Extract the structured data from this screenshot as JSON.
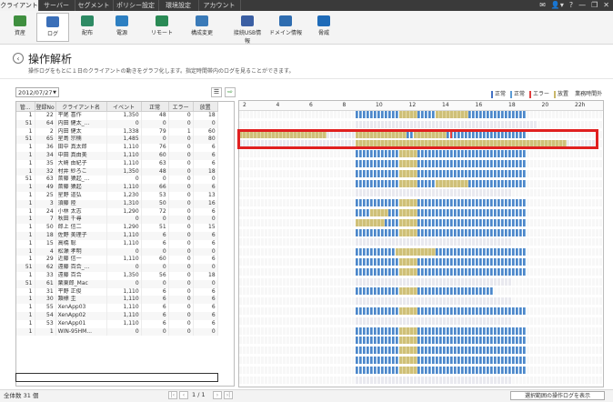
{
  "tabs": [
    "クライアント",
    "サーバー",
    "セグメント",
    "ポリシー設定",
    "環境設定",
    "アカウント"
  ],
  "top_icons": [
    "mail-icon",
    "user-icon",
    "help-icon",
    "minimize-icon",
    "restore-icon",
    "close-icon"
  ],
  "top_icon_glyphs": [
    "✉",
    "👤▾",
    "?",
    "—",
    "❐",
    "✕"
  ],
  "ribbon": [
    {
      "label": "資産",
      "icon": "asset-icon",
      "color": "#3f8f3f"
    },
    {
      "label": "ログ",
      "icon": "log-icon",
      "color": "#3a6fb8"
    },
    {
      "label": "配布",
      "icon": "distribution-icon",
      "color": "#2e8a64"
    },
    {
      "label": "電源",
      "icon": "power-icon",
      "color": "#2d7fc1"
    },
    {
      "label": "リモート",
      "icon": "remote-icon",
      "color": "#2a8a55"
    },
    {
      "label": "構成変更",
      "icon": "config-change-icon",
      "color": "#3a7ab8"
    },
    {
      "label": "接続USB情報",
      "icon": "usb-icon",
      "color": "#3b5fa3"
    },
    {
      "label": "ドメイン情報",
      "icon": "domain-icon",
      "color": "#2f6db0"
    },
    {
      "label": "脅威",
      "icon": "threat-shield-icon",
      "color": "#1f6bb8"
    }
  ],
  "page": {
    "title": "操作解析",
    "subtitle": "操作ログをもとに１日のクライアントの動きをグラフ化します。指定時間帯内のログを見ることができます。",
    "date": "2012/07/27"
  },
  "columns": [
    "管...",
    "登録No",
    "クライアント名",
    "イベント",
    "正常",
    "エラー",
    "放置"
  ],
  "rows": [
    [
      "1",
      "22",
      "平尾 喜作",
      "1,350",
      "48",
      "0",
      "18"
    ],
    [
      "51",
      "64",
      "内田 健太_...",
      "0",
      "0",
      "0",
      "0"
    ],
    [
      "1",
      "2",
      "内田 健太",
      "1,338",
      "79",
      "1",
      "60"
    ],
    [
      "51",
      "65",
      "星島 宗楠",
      "1,485",
      "0",
      "0",
      "80"
    ],
    [
      "1",
      "36",
      "田中 真太郎",
      "1,110",
      "76",
      "0",
      "6"
    ],
    [
      "1",
      "34",
      "中田 真由美",
      "1,110",
      "60",
      "0",
      "6"
    ],
    [
      "1",
      "35",
      "大崎 由紀子",
      "1,110",
      "63",
      "0",
      "6"
    ],
    [
      "1",
      "32",
      "村井 紗ろこ",
      "1,350",
      "48",
      "0",
      "18"
    ],
    [
      "51",
      "63",
      "斎藤 猿起_...",
      "0",
      "0",
      "0",
      "0"
    ],
    [
      "1",
      "49",
      "斎藤 猿起",
      "1,110",
      "66",
      "0",
      "6"
    ],
    [
      "1",
      "25",
      "星野 道弘",
      "1,230",
      "53",
      "0",
      "13"
    ],
    [
      "1",
      "3",
      "須藤 陸",
      "1,310",
      "50",
      "0",
      "16"
    ],
    [
      "1",
      "24",
      "小林 太志",
      "1,290",
      "72",
      "0",
      "6"
    ],
    [
      "1",
      "7",
      "秋田 千尋",
      "0",
      "0",
      "0",
      "0"
    ],
    [
      "1",
      "50",
      "郎上 信二",
      "1,290",
      "51",
      "0",
      "15"
    ],
    [
      "1",
      "18",
      "佐野 美理子",
      "1,110",
      "6",
      "0",
      "6"
    ],
    [
      "1",
      "15",
      "高橋 聡",
      "1,110",
      "6",
      "0",
      "6"
    ],
    [
      "1",
      "4",
      "松瀬 孝明",
      "0",
      "0",
      "0",
      "0"
    ],
    [
      "1",
      "29",
      "近藤 信一",
      "1,110",
      "60",
      "0",
      "6"
    ],
    [
      "51",
      "62",
      "遠藤 百合_...",
      "0",
      "0",
      "0",
      "0"
    ],
    [
      "1",
      "33",
      "遠藤 百合",
      "1,350",
      "56",
      "0",
      "18"
    ],
    [
      "51",
      "61",
      "栗東郎_Mac",
      "0",
      "0",
      "0",
      "0"
    ],
    [
      "1",
      "31",
      "平野 正俊",
      "1,110",
      "6",
      "0",
      "6"
    ],
    [
      "1",
      "30",
      "類標 圭",
      "1,110",
      "6",
      "0",
      "6"
    ],
    [
      "1",
      "55",
      "XenApp03",
      "1,110",
      "6",
      "0",
      "6"
    ],
    [
      "1",
      "54",
      "XenApp02",
      "1,110",
      "6",
      "0",
      "6"
    ],
    [
      "1",
      "53",
      "XenApp01",
      "1,110",
      "6",
      "0",
      "6"
    ],
    [
      "1",
      "1",
      "WIN-95HM...",
      "0",
      "0",
      "0",
      "0"
    ]
  ],
  "footer": {
    "total": "全体数 31 個",
    "page": "1 / 1",
    "show_button": "選択範囲の操作ログを表示"
  },
  "legend": [
    {
      "label": "正常",
      "color": "#4472c4"
    },
    {
      "label": "正常",
      "color": "#5b9bd5"
    },
    {
      "label": "エラー",
      "color": "#e04040"
    },
    {
      "label": "放置",
      "color": "#c9b86a"
    },
    {
      "label": "業務時間外",
      "color": "#eeeeee"
    }
  ],
  "hours": [
    "2",
    "4",
    "6",
    "8",
    "10",
    "12",
    "14",
    "16",
    "18",
    "20",
    "22h"
  ],
  "colors": {
    "active": "#4e86c9",
    "active2": "#7bb0e0",
    "idle": "#cfc078",
    "offhours": "#e9e9ef",
    "error": "#e04040",
    "highlight": "#e02020"
  },
  "timeline": [
    {
      "segs": [
        [
          0.32,
          0.44,
          "a"
        ],
        [
          0.44,
          0.49,
          "i"
        ],
        [
          0.49,
          0.54,
          "a"
        ],
        [
          0.54,
          0.63,
          "i"
        ],
        [
          0.63,
          0.79,
          "a"
        ]
      ]
    },
    {
      "segs": [
        [
          0.32,
          0.82,
          "o"
        ]
      ]
    },
    {
      "segs": [
        [
          0.0,
          0.24,
          "i"
        ],
        [
          0.24,
          0.32,
          "o"
        ],
        [
          0.32,
          0.46,
          "i"
        ],
        [
          0.46,
          0.48,
          "a"
        ],
        [
          0.48,
          0.57,
          "i"
        ],
        [
          0.57,
          0.62,
          "a"
        ],
        [
          0.62,
          0.79,
          "a"
        ]
      ],
      "err": 0.58
    },
    {
      "segs": [
        [
          0.0,
          0.32,
          "o"
        ],
        [
          0.32,
          0.9,
          "i"
        ],
        [
          0.9,
          0.98,
          "o"
        ]
      ]
    },
    {
      "segs": [
        [
          0.32,
          0.44,
          "a"
        ],
        [
          0.44,
          0.49,
          "i"
        ],
        [
          0.49,
          0.79,
          "a"
        ]
      ]
    },
    {
      "segs": [
        [
          0.32,
          0.44,
          "a"
        ],
        [
          0.44,
          0.49,
          "i"
        ],
        [
          0.49,
          0.79,
          "a"
        ]
      ]
    },
    {
      "segs": [
        [
          0.32,
          0.44,
          "a"
        ],
        [
          0.44,
          0.49,
          "i"
        ],
        [
          0.49,
          0.79,
          "a"
        ]
      ]
    },
    {
      "segs": [
        [
          0.32,
          0.44,
          "a"
        ],
        [
          0.44,
          0.49,
          "i"
        ],
        [
          0.49,
          0.54,
          "a"
        ],
        [
          0.54,
          0.63,
          "i"
        ],
        [
          0.63,
          0.79,
          "a"
        ]
      ]
    },
    {
      "segs": [
        [
          0.32,
          0.75,
          "o"
        ]
      ]
    },
    {
      "segs": [
        [
          0.32,
          0.44,
          "a"
        ],
        [
          0.44,
          0.49,
          "i"
        ],
        [
          0.49,
          0.79,
          "a"
        ]
      ]
    },
    {
      "segs": [
        [
          0.32,
          0.36,
          "a"
        ],
        [
          0.36,
          0.41,
          "i"
        ],
        [
          0.41,
          0.44,
          "a"
        ],
        [
          0.44,
          0.49,
          "i"
        ],
        [
          0.49,
          0.79,
          "a"
        ]
      ]
    },
    {
      "segs": [
        [
          0.32,
          0.35,
          "i"
        ],
        [
          0.35,
          0.4,
          "i"
        ],
        [
          0.4,
          0.44,
          "a"
        ],
        [
          0.44,
          0.49,
          "i"
        ],
        [
          0.49,
          0.79,
          "a"
        ]
      ]
    },
    {
      "segs": [
        [
          0.32,
          0.44,
          "a"
        ],
        [
          0.44,
          0.49,
          "i"
        ],
        [
          0.49,
          0.79,
          "a"
        ]
      ]
    },
    {
      "segs": [
        [
          0.32,
          0.75,
          "o"
        ]
      ]
    },
    {
      "segs": [
        [
          0.32,
          0.43,
          "a"
        ],
        [
          0.43,
          0.54,
          "i"
        ],
        [
          0.54,
          0.79,
          "a"
        ]
      ]
    },
    {
      "segs": [
        [
          0.32,
          0.44,
          "a"
        ],
        [
          0.44,
          0.49,
          "i"
        ],
        [
          0.49,
          0.79,
          "a"
        ]
      ]
    },
    {
      "segs": [
        [
          0.32,
          0.44,
          "a"
        ],
        [
          0.44,
          0.49,
          "i"
        ],
        [
          0.49,
          0.79,
          "a"
        ]
      ]
    },
    {
      "segs": [
        [
          0.32,
          0.75,
          "o"
        ]
      ]
    },
    {
      "segs": [
        [
          0.32,
          0.44,
          "a"
        ],
        [
          0.44,
          0.49,
          "i"
        ],
        [
          0.49,
          0.7,
          "a"
        ]
      ]
    },
    {
      "segs": [
        [
          0.32,
          0.75,
          "o"
        ]
      ]
    },
    {
      "segs": [
        [
          0.32,
          0.44,
          "a"
        ],
        [
          0.44,
          0.49,
          "i"
        ],
        [
          0.49,
          0.79,
          "a"
        ]
      ]
    },
    {
      "segs": [
        [
          0.32,
          0.75,
          "o"
        ]
      ]
    },
    {
      "segs": [
        [
          0.32,
          0.44,
          "a"
        ],
        [
          0.44,
          0.49,
          "i"
        ],
        [
          0.49,
          0.79,
          "a"
        ]
      ]
    },
    {
      "segs": [
        [
          0.32,
          0.44,
          "a"
        ],
        [
          0.44,
          0.49,
          "i"
        ],
        [
          0.49,
          0.79,
          "a"
        ]
      ]
    },
    {
      "segs": [
        [
          0.32,
          0.44,
          "a"
        ],
        [
          0.44,
          0.49,
          "i"
        ],
        [
          0.49,
          0.79,
          "a"
        ]
      ]
    },
    {
      "segs": [
        [
          0.32,
          0.44,
          "a"
        ],
        [
          0.44,
          0.49,
          "i"
        ],
        [
          0.49,
          0.79,
          "a"
        ]
      ]
    },
    {
      "segs": [
        [
          0.32,
          0.44,
          "a"
        ],
        [
          0.44,
          0.49,
          "i"
        ],
        [
          0.49,
          0.79,
          "a"
        ]
      ]
    },
    {
      "segs": [
        [
          0.32,
          0.75,
          "o"
        ]
      ]
    }
  ]
}
